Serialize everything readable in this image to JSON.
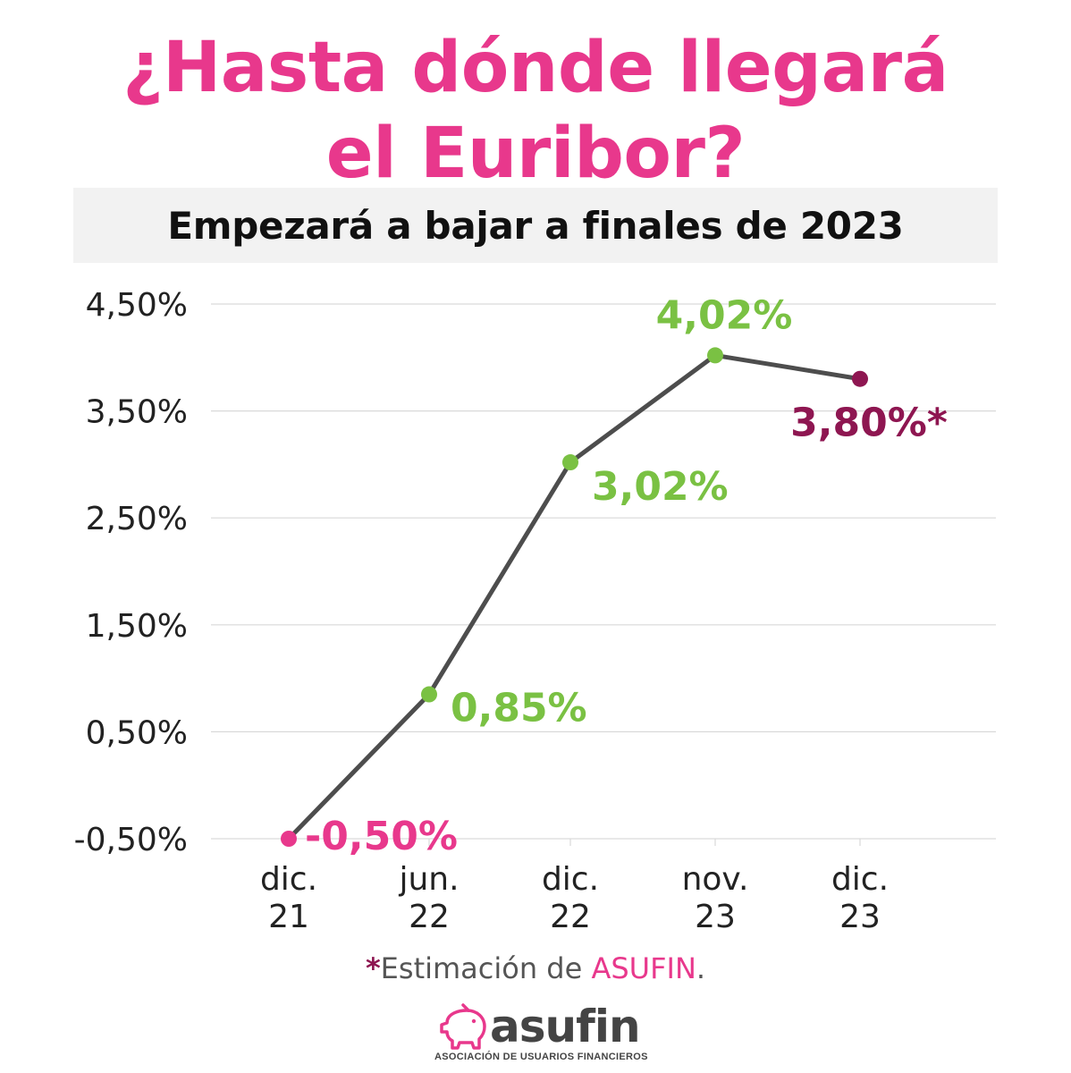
{
  "header": {
    "title_line1": "¿Hasta dónde llegará",
    "title_line2": "el Euribor?",
    "subtitle": "Empezará a bajar a finales de 2023"
  },
  "chart_data": {
    "type": "line",
    "categories": [
      [
        "dic.",
        "21"
      ],
      [
        "jun.",
        "22"
      ],
      [
        "dic.",
        "22"
      ],
      [
        "nov.",
        "23"
      ],
      [
        "dic.",
        "23"
      ]
    ],
    "values": [
      -0.5,
      0.85,
      3.02,
      4.02,
      3.8
    ],
    "data_labels": [
      "-0,50%",
      "0,85%",
      "3,02%",
      "4,02%",
      "3,80%*"
    ],
    "yticks": [
      -0.5,
      0.5,
      1.5,
      2.5,
      3.5,
      4.5
    ],
    "ytick_labels": [
      "-0,50%",
      "0,50%",
      "1,50%",
      "2,50%",
      "3,50%",
      "4,50%"
    ],
    "ylim": [
      -0.5,
      4.5
    ],
    "grid": true,
    "colors": {
      "line": "#4d4d4d",
      "point_actual": "#7ac143",
      "point_first": "#e8388c",
      "point_estimate": "#8e1651",
      "grid": "#d9d9d9"
    }
  },
  "footnote": {
    "star": "*",
    "text": "Estimación de ",
    "org": "ASUFIN",
    "end": "."
  },
  "logo": {
    "word": "asufin",
    "tagline": "ASOCIACIÓN DE USUARIOS FINANCIEROS",
    "icon": "piggy-bank-icon",
    "color": "#e8388c"
  }
}
